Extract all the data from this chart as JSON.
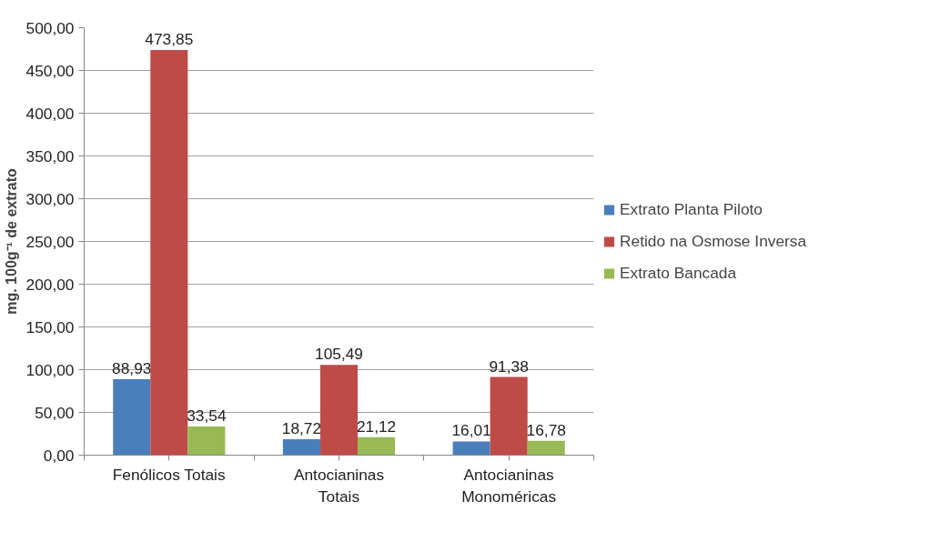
{
  "chart_data": {
    "type": "bar",
    "ylabel": "mg. 100g⁻¹ de extrato",
    "categories": [
      "Fenólicos Totais",
      "Antocianinas Totais",
      "Antocianinas Monoméricas"
    ],
    "series": [
      {
        "name": "Extrato Planta Piloto",
        "color": "#4a7ebb",
        "values": [
          88.93,
          18.72,
          16.01
        ],
        "value_labels": [
          "88,93",
          "18,72",
          "16,01"
        ]
      },
      {
        "name": "Retido na Osmose Inversa",
        "color": "#be4b48",
        "values": [
          473.85,
          105.49,
          91.38
        ],
        "value_labels": [
          "473,85",
          "105,49",
          "91,38"
        ]
      },
      {
        "name": "Extrato Bancada",
        "color": "#98b954",
        "values": [
          33.54,
          21.12,
          16.78
        ],
        "value_labels": [
          "33,54",
          "21,12",
          "16,78"
        ]
      }
    ],
    "ylim": [
      0,
      500
    ],
    "yticks": [
      {
        "value": 0,
        "label": "0,00"
      },
      {
        "value": 50,
        "label": "50,00"
      },
      {
        "value": 100,
        "label": "100,00"
      },
      {
        "value": 150,
        "label": "150,00"
      },
      {
        "value": 200,
        "label": "200,00"
      },
      {
        "value": 250,
        "label": "250,00"
      },
      {
        "value": 300,
        "label": "300,00"
      },
      {
        "value": 350,
        "label": "350,00"
      },
      {
        "value": 400,
        "label": "400,00"
      },
      {
        "value": 450,
        "label": "450,00"
      },
      {
        "value": 500,
        "label": "500,00"
      }
    ],
    "grid": "y",
    "legend": "right"
  }
}
